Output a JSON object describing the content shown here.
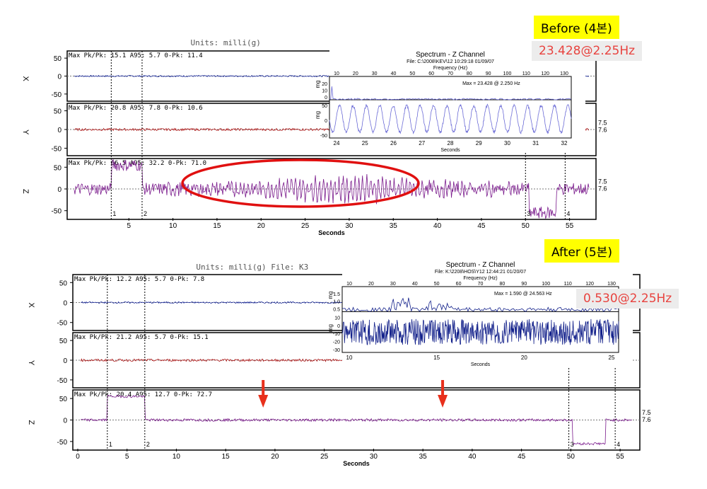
{
  "before_label": "Before (4본)",
  "before_value": "23.428@2.25Hz",
  "after_label": "After (5본)",
  "after_value": "0.530@2.25Hz",
  "colors": {
    "x": "#1a2a9c",
    "y": "#b01818",
    "z": "#7a1a8c",
    "inset_before": "#6b6bd6",
    "inset_after": "#12208a",
    "highlight": "#e01010",
    "arrow": "#e8301c"
  },
  "chart_data": [
    {
      "type": "line",
      "name_hidden": "",
      "header_text": "Units: milli(g)",
      "xlabel": "Seconds",
      "xlim": [
        -2,
        58
      ],
      "x_ticks": [
        5,
        10,
        15,
        20,
        25,
        30,
        35,
        40,
        45,
        50,
        55
      ],
      "channels": [
        {
          "label": "X",
          "info": "Max Pk/Pk: 15.1  A95: 5.7  0-Pk: 11.4",
          "ylim": [
            -70,
            70
          ],
          "y_ticks": [
            50,
            0,
            -50
          ],
          "amplitude": 2
        },
        {
          "label": "Y",
          "info": "Max Pk/Pk: 20.8  A95: 7.8  0-Pk: 10.6",
          "ylim": [
            -70,
            70
          ],
          "y_ticks": [
            50,
            0,
            -50
          ],
          "amplitude": 3,
          "right_marks": [
            "7.5",
            "7.6"
          ]
        },
        {
          "label": "Z",
          "info": "Max Pk/Pk: 66.5  A95: 32.2  0-Pk: 71.0",
          "ylim": [
            -70,
            70
          ],
          "y_ticks": [
            50,
            0,
            -50
          ],
          "amplitude": 14,
          "right_marks": [
            "7.5",
            "7.6"
          ]
        }
      ],
      "markers": [
        {
          "label": "1",
          "x": 3.0
        },
        {
          "label": "2",
          "x": 6.5
        },
        {
          "label": "3",
          "x": 50.0
        },
        {
          "label": "4",
          "x": 54.5
        }
      ],
      "inset": {
        "title": "Spectrum - Z Channel",
        "file": "File: C:\\2008\\KEV\\12   10:29:18 01/09/07",
        "freq_label": "Frequency (Hz)",
        "freq_ticks": [
          10,
          20,
          30,
          40,
          50,
          60,
          70,
          80,
          90,
          100,
          110,
          120,
          130
        ],
        "max_text": "Max = 23.428 @ 2.250 Hz",
        "spec_y_ticks": [
          "20",
          "10",
          "0"
        ],
        "spec_ylabel": "mg",
        "time_ylabel": "mg",
        "time_y_ticks": [
          "50",
          "0",
          "-50"
        ],
        "time_ticks": [
          24,
          25,
          26,
          27,
          28,
          29,
          30,
          31,
          32
        ],
        "time_xlabel": "Seconds",
        "wave_cycles": 18
      }
    },
    {
      "type": "line",
      "header_text": "Units: milli(g)    File: K3",
      "xlabel": "Seconds",
      "xlim": [
        -0.5,
        57
      ],
      "x_ticks": [
        0,
        5,
        10,
        15,
        20,
        25,
        30,
        35,
        40,
        45,
        50,
        55
      ],
      "channels": [
        {
          "label": "X",
          "info": "Max Pk/Pk: 12.2  A95: 5.7  0-Pk: 7.8",
          "ylim": [
            -70,
            70
          ],
          "y_ticks": [
            50,
            0,
            -50
          ],
          "amplitude": 2
        },
        {
          "label": "Y",
          "info": "Max Pk/Pk: 21.2  A95: 5.7  0-Pk: 15.1",
          "ylim": [
            -70,
            70
          ],
          "y_ticks": [
            50,
            0,
            -50
          ],
          "amplitude": 3
        },
        {
          "label": "Z",
          "info": "Max Pk/Pk: 20.4  A95: 12.7  0-Pk: 72.7",
          "ylim": [
            -70,
            70
          ],
          "y_ticks": [
            50,
            0,
            -50
          ],
          "amplitude": 3,
          "right_marks": [
            "7.5",
            "7.6"
          ]
        }
      ],
      "markers": [
        {
          "label": "1",
          "x": 3.0
        },
        {
          "label": "2",
          "x": 6.8
        },
        {
          "label": "3",
          "x": 49.8
        },
        {
          "label": "4",
          "x": 54.5
        }
      ],
      "arrows_x": [
        18.8,
        37.0
      ],
      "inset": {
        "title": "Spectrum - Z Channel",
        "file": "File: K:\\2208\\HOS\\Y12    12:44:21 01/20/07",
        "freq_label": "Frequency (Hz)",
        "freq_ticks": [
          10,
          20,
          30,
          40,
          50,
          60,
          70,
          80,
          90,
          100,
          110,
          120,
          130
        ],
        "max_text": "Max = 1.590 @ 24.563 Hz",
        "spec_y_ticks": [
          "1.5",
          "1.0",
          "0.5"
        ],
        "spec_ylabel": "mg",
        "time_ylabel": "mg",
        "time_y_ticks": [
          "10",
          "0",
          "-10",
          "-20",
          "-30"
        ],
        "time_ticks": [
          10,
          15,
          20,
          25
        ],
        "time_xlabel": "Seconds"
      }
    }
  ]
}
